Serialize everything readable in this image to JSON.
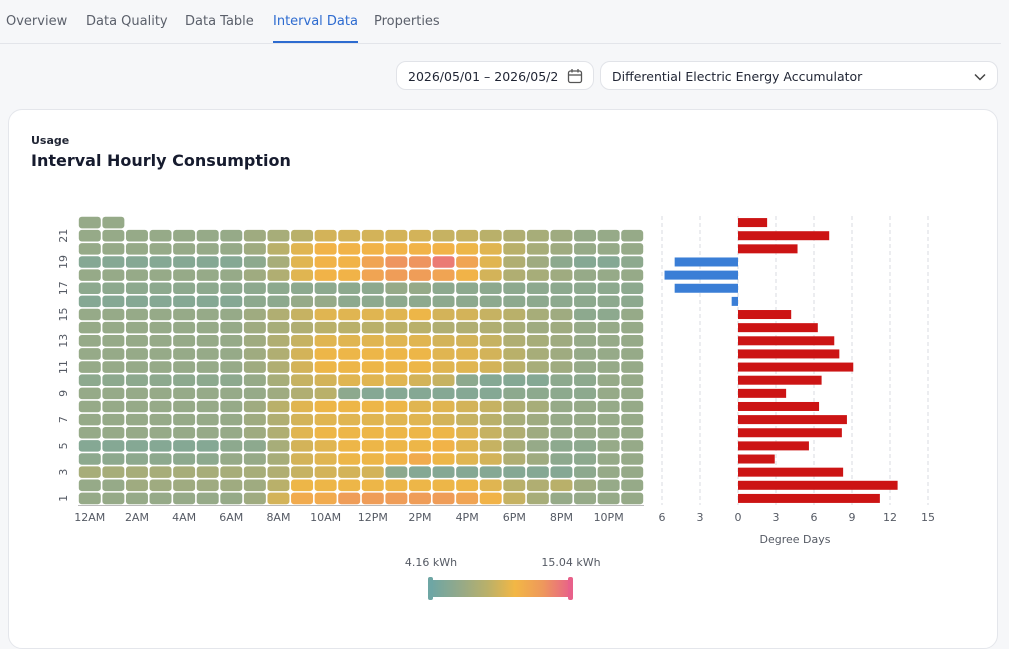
{
  "tabs": [
    "Overview",
    "Data Quality",
    "Data Table",
    "Interval Data",
    "Properties"
  ],
  "active_tab": 3,
  "date_range": "2026/05/01 – 2026/05/2",
  "meter": "Differential Electric Energy Accumulator",
  "card": {
    "eyebrow": "Usage",
    "title": "Interval Hourly Consumption"
  },
  "chart_data": [
    {
      "type": "heatmap",
      "x_categories": [
        "12AM",
        null,
        "2AM",
        null,
        "4AM",
        null,
        "6AM",
        null,
        "8AM",
        null,
        "10AM",
        null,
        "12PM",
        null,
        "2PM",
        null,
        "4PM",
        null,
        "6PM",
        null,
        "8PM",
        null,
        "10PM",
        null
      ],
      "y_categories": [
        1,
        null,
        3,
        null,
        5,
        null,
        7,
        null,
        9,
        null,
        11,
        null,
        13,
        null,
        15,
        null,
        17,
        null,
        19,
        null,
        21,
        null
      ],
      "values": [
        [
          6.5,
          6.5,
          6.5,
          6.5,
          6.5,
          6.5,
          6.5,
          7,
          9.5,
          11.5,
          11.5,
          12.5,
          12.5,
          12.5,
          12.5,
          12.5,
          12,
          11,
          9,
          7.5,
          6.5,
          6.5,
          6.5,
          6.5
        ],
        [
          6.5,
          6.5,
          7,
          7,
          7,
          7,
          7,
          7,
          8.5,
          10.5,
          10.5,
          10.5,
          10.5,
          10.5,
          10.5,
          10.5,
          10.5,
          10,
          8.5,
          8,
          8.5,
          7,
          6.5,
          6.5
        ],
        [
          7.5,
          7.5,
          7.5,
          7.5,
          7.5,
          7.5,
          7.5,
          7.5,
          8,
          9,
          9.5,
          9.5,
          9.5,
          6,
          5.5,
          5.5,
          5.5,
          5.5,
          5.5,
          5.5,
          5.5,
          6,
          6.5,
          6.5
        ],
        [
          6,
          6,
          6,
          6,
          6,
          6,
          6.5,
          6.5,
          7.5,
          9.5,
          10,
          10.5,
          10.5,
          11,
          11.5,
          10.5,
          10,
          9.5,
          8,
          7,
          6,
          6,
          6.5,
          6.5
        ],
        [
          5.5,
          5.5,
          5.5,
          5.5,
          5.5,
          5.5,
          6,
          6,
          7.5,
          9.5,
          10,
          10.5,
          10.5,
          10.5,
          10.5,
          11,
          10,
          9,
          7.5,
          6.5,
          6,
          6,
          6.5,
          6.5
        ],
        [
          6.5,
          6.5,
          6.5,
          6.5,
          6.5,
          6.5,
          6.5,
          7,
          8,
          10,
          10.5,
          10.5,
          10.5,
          10.5,
          10.5,
          10.5,
          10,
          9,
          8,
          7,
          6.5,
          6.5,
          6.5,
          6.5
        ],
        [
          6.5,
          6.5,
          6.5,
          6.5,
          6.5,
          6.5,
          6.5,
          7,
          8,
          9.5,
          10,
          10,
          10,
          10,
          10,
          9.5,
          9,
          8.5,
          7.5,
          7,
          6.5,
          6.5,
          6.5,
          6.5
        ],
        [
          6.5,
          6.5,
          6.5,
          6.5,
          6.5,
          6.5,
          6.5,
          7,
          8.5,
          10,
          10.5,
          10.5,
          10.5,
          10.5,
          10,
          10,
          9.5,
          9,
          8,
          7.5,
          6.5,
          6.5,
          6.5,
          6.5
        ],
        [
          6.5,
          6.5,
          6.5,
          6.5,
          6.5,
          6.5,
          6.5,
          6.5,
          7,
          8,
          8.5,
          6,
          5.5,
          5.5,
          5.5,
          5.5,
          5.5,
          5.5,
          6,
          6,
          6,
          6,
          6.5,
          6.5
        ],
        [
          6,
          6,
          6,
          6,
          6,
          6,
          6,
          6.5,
          7.5,
          9,
          9.5,
          10,
          10,
          10,
          9.5,
          9,
          6,
          5.5,
          5.5,
          5.5,
          6,
          6,
          6.5,
          6.5
        ],
        [
          6.5,
          6.5,
          6.5,
          6.5,
          6.5,
          6.5,
          6.5,
          7,
          8,
          9.5,
          10.5,
          10.5,
          10.5,
          10.5,
          10.5,
          10,
          10,
          9.5,
          8.5,
          7.5,
          7,
          6.5,
          6.5,
          6.5
        ],
        [
          6.5,
          6.5,
          6.5,
          6.5,
          6.5,
          6.5,
          6.5,
          7,
          8,
          9.5,
          10.5,
          10.5,
          10.5,
          10.5,
          10.5,
          10,
          10,
          9.5,
          8.5,
          7.5,
          7,
          6.5,
          6.5,
          6.5
        ],
        [
          6.5,
          6.5,
          6.5,
          6.5,
          6.5,
          6.5,
          6.5,
          7,
          8,
          9,
          10,
          10,
          10,
          10,
          10,
          9.5,
          9.5,
          9,
          8,
          7.5,
          7,
          6.5,
          6.5,
          6.5
        ],
        [
          6.5,
          6.5,
          6.5,
          6.5,
          6.5,
          6.5,
          6.5,
          7,
          7.5,
          8,
          8.5,
          8.5,
          8.5,
          8.5,
          8.5,
          8,
          8,
          8,
          7.5,
          7,
          7,
          6.5,
          6.5,
          6.5
        ],
        [
          6.5,
          6.5,
          6.5,
          6.5,
          6.5,
          6.5,
          6.5,
          7,
          8,
          9,
          10,
          10,
          10,
          10,
          10.5,
          9.5,
          9.5,
          9,
          8.5,
          7.5,
          7,
          6,
          6,
          6.5
        ],
        [
          5.5,
          5.5,
          5.5,
          5.5,
          5.5,
          5.5,
          5.5,
          6,
          6,
          6.5,
          6.5,
          6,
          6,
          6,
          6,
          6,
          6,
          6,
          6,
          6,
          6,
          6,
          6,
          6
        ],
        [
          6,
          6,
          6,
          6,
          6,
          6,
          6,
          6,
          6,
          6,
          6,
          6,
          6,
          6.5,
          6.5,
          6,
          6,
          6,
          6,
          6,
          6,
          6,
          6,
          6
        ],
        [
          6.5,
          6.5,
          6.5,
          6.5,
          6.5,
          6.5,
          6.5,
          7,
          8,
          10,
          11,
          11,
          12,
          12.5,
          12.5,
          12,
          11,
          9.5,
          8,
          7.5,
          7,
          6.5,
          6.5,
          6.5
        ],
        [
          5.5,
          5.5,
          5.5,
          5.5,
          5.5,
          5.5,
          5.5,
          6,
          7.5,
          10,
          11,
          11,
          12,
          13,
          13,
          14,
          12,
          10,
          8,
          7,
          6,
          5.5,
          5.5,
          6
        ],
        [
          6.5,
          6.5,
          6.5,
          6.5,
          6.5,
          6.5,
          6.5,
          7,
          8.5,
          10,
          11,
          11,
          11,
          11,
          11,
          11,
          10.5,
          10,
          8.5,
          7.5,
          7,
          6.5,
          6.5,
          6.5
        ],
        [
          6.5,
          6.5,
          6.5,
          6.5,
          6.5,
          6.5,
          6.5,
          7,
          7.5,
          8.5,
          9.5,
          9.5,
          9.5,
          9.5,
          9.5,
          9,
          9,
          8.5,
          8,
          7.5,
          7,
          6.5,
          6.5,
          6.5
        ],
        [
          6.5,
          6.5,
          null,
          null,
          null,
          null,
          null,
          null,
          null,
          null,
          null,
          null,
          null,
          null,
          null,
          null,
          null,
          null,
          null,
          null,
          null,
          null,
          null,
          null
        ]
      ],
      "colorscale": {
        "min": {
          "value": 4.16,
          "label": "4.16 kWh"
        },
        "max": {
          "value": 15.04,
          "label": "15.04 kWh"
        },
        "colors": [
          "#6ea6a4",
          "#93a98a",
          "#b9b06a",
          "#f2b745",
          "#ee985c",
          "#e8618a"
        ]
      }
    },
    {
      "type": "bar",
      "orientation": "horizontal",
      "values": [
        11.2,
        12.6,
        8.3,
        2.9,
        5.6,
        8.2,
        8.6,
        6.4,
        3.8,
        6.6,
        9.1,
        8,
        7.6,
        6.3,
        4.2,
        -0.5,
        -5,
        -5.8,
        -5,
        4.7,
        7.2,
        2.3
      ],
      "xlabel": "Degree Days",
      "xlim": [
        -6,
        15
      ],
      "xticks": [
        {
          "value": -6,
          "label": "6"
        },
        {
          "value": -3,
          "label": "3"
        },
        0,
        3,
        6,
        9,
        12,
        15
      ],
      "color": "#cc1414",
      "negative_color": "#3a7ed6",
      "grid": true
    }
  ]
}
